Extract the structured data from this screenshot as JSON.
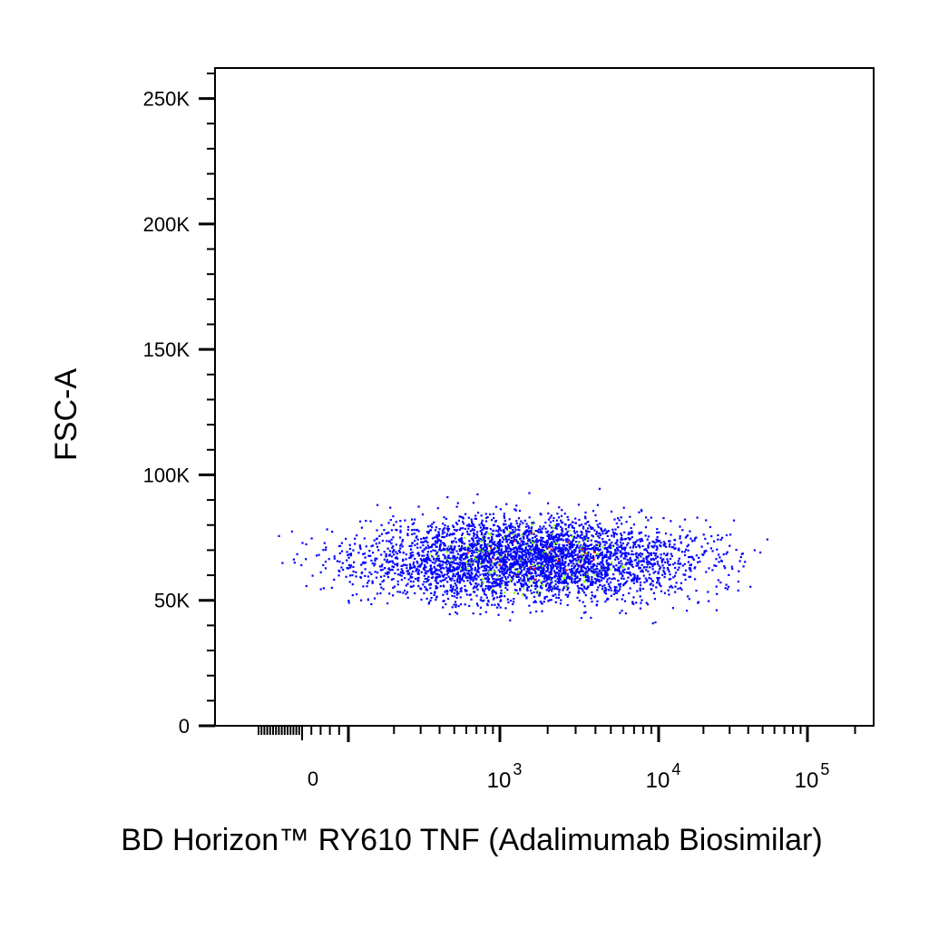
{
  "chart_data": {
    "type": "scatter",
    "xlabel": "BD Horizon™ RY610 TNF (Adalimumab Biosimilar)",
    "ylabel": "FSC-A",
    "x_scale": "biexponential",
    "x_ticks": [
      {
        "value": 0,
        "label": "0"
      },
      {
        "value": 1000,
        "base": "10",
        "exp": "3"
      },
      {
        "value": 10000,
        "base": "10",
        "exp": "4"
      },
      {
        "value": 100000,
        "base": "10",
        "exp": "5"
      }
    ],
    "y_ticks": [
      "0",
      "50K",
      "100K",
      "150K",
      "200K",
      "250K"
    ],
    "ylim": [
      0,
      262144
    ],
    "xlim": [
      -400,
      262144
    ],
    "grid": false,
    "legend": "none",
    "density_colors": [
      "#0000ff",
      "#7fff00",
      "#ff0000"
    ],
    "population": {
      "x_range": [
        -300,
        150000
      ],
      "x_center": 1500,
      "y_range": [
        35000,
        100000
      ],
      "y_center": 67000,
      "event_count_estimate": 4000
    }
  }
}
